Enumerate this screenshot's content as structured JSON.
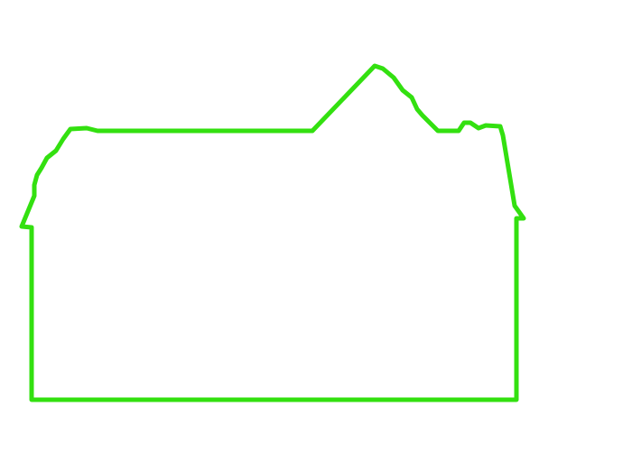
{
  "drawing": {
    "stroke_color": "#33e010",
    "background_color": "#ffffff",
    "shape": "house-outline"
  }
}
